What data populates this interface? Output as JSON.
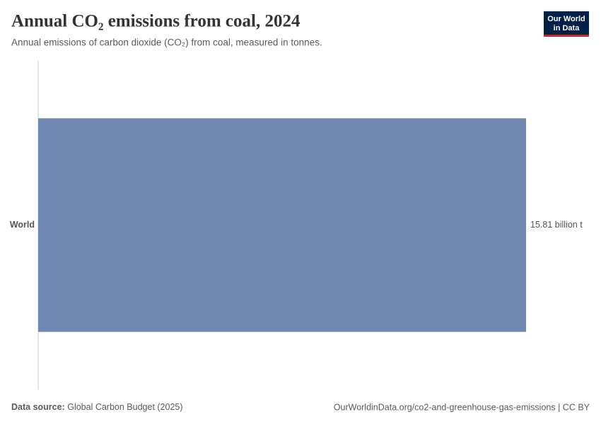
{
  "chart_data": {
    "type": "bar",
    "orientation": "horizontal",
    "title": "Annual CO₂ emissions from coal, 2024",
    "subtitle": "Annual emissions of carbon dioxide (CO₂) from coal, measured in tonnes.",
    "categories": [
      "World"
    ],
    "values": [
      15.81
    ],
    "value_labels": [
      "15.81 billion t"
    ],
    "color": "#6f88b0"
  },
  "logo": [
    "Our World",
    "in Data"
  ],
  "footer": {
    "source_label": "Data source:",
    "source": "Global Carbon Budget (2025)",
    "credit": "OurWorldinData.org/co2-and-greenhouse-gas-emissions | CC BY"
  }
}
